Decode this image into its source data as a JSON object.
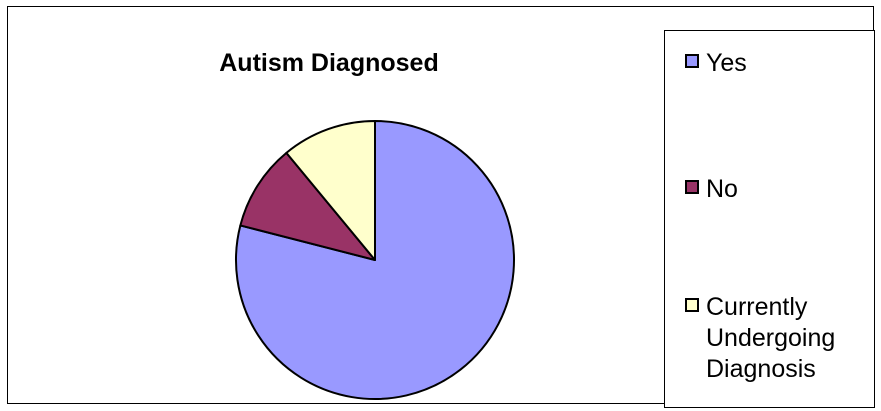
{
  "chart_data": {
    "type": "pie",
    "title": "Autism Diagnosed",
    "categories": [
      "Yes",
      "No",
      "Currently Undergoing Diagnosis"
    ],
    "values": [
      79,
      10,
      11
    ],
    "colors": [
      "#9999ff",
      "#993366",
      "#ffffcc"
    ],
    "start_angle_deg": 0,
    "direction": "clockwise",
    "legend_placement": "right"
  },
  "legend": {
    "items": [
      {
        "label": "Yes",
        "color": "#9999ff"
      },
      {
        "label": "No",
        "color": "#993366"
      },
      {
        "label": "Currently\nUndergoing\nDiagnosis",
        "color": "#ffffcc"
      }
    ]
  }
}
